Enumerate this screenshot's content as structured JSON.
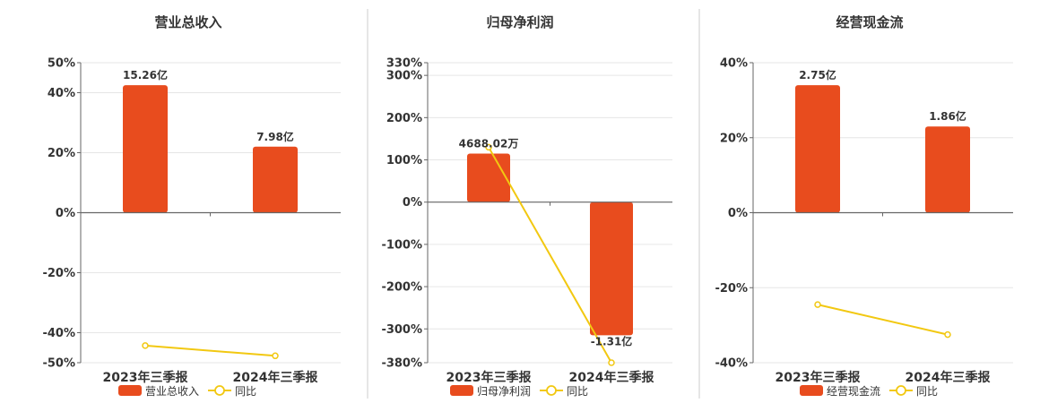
{
  "colors": {
    "bar": "#e84c1e",
    "line": "#f2c811",
    "grid": "#e6e6e6",
    "axis": "#666666",
    "text": "#333333",
    "divider": "#cccccc"
  },
  "chart_data": [
    {
      "type": "bar",
      "title": "营业总收入",
      "categories": [
        "2023年三季报",
        "2024年三季报"
      ],
      "series": [
        {
          "name": "营业总收入",
          "type": "bar",
          "values": [
            42.5,
            22.0
          ],
          "labels": [
            "15.26亿",
            "7.98亿"
          ]
        },
        {
          "name": "同比",
          "type": "line",
          "values": [
            -44.3,
            -47.7
          ]
        }
      ],
      "yticks": [
        50,
        40,
        20,
        0,
        -20,
        -40,
        -50
      ],
      "ylim": [
        -50,
        50
      ],
      "grid": true,
      "legend": "bottom"
    },
    {
      "type": "bar",
      "title": "归母净利润",
      "categories": [
        "2023年三季报",
        "2024年三季报"
      ],
      "series": [
        {
          "name": "归母净利润",
          "type": "bar",
          "values": [
            115,
            -315
          ],
          "labels": [
            "4688.02万",
            "-1.31亿"
          ]
        },
        {
          "name": "同比",
          "type": "line",
          "values": [
            130,
            -380
          ]
        }
      ],
      "yticks": [
        330,
        300,
        200,
        100,
        0,
        -100,
        -200,
        -300,
        -380
      ],
      "ylim": [
        -380,
        330
      ],
      "grid": true,
      "legend": "bottom"
    },
    {
      "type": "bar",
      "title": "经营现金流",
      "categories": [
        "2023年三季报",
        "2024年三季报"
      ],
      "series": [
        {
          "name": "经营现金流",
          "type": "bar",
          "values": [
            34.0,
            23.0
          ],
          "labels": [
            "2.75亿",
            "1.86亿"
          ]
        },
        {
          "name": "同比",
          "type": "line",
          "values": [
            -24.5,
            -32.5
          ]
        }
      ],
      "yticks": [
        40,
        20,
        0,
        -20,
        -40
      ],
      "ylim": [
        -40,
        40
      ],
      "grid": true,
      "legend": "bottom"
    }
  ]
}
